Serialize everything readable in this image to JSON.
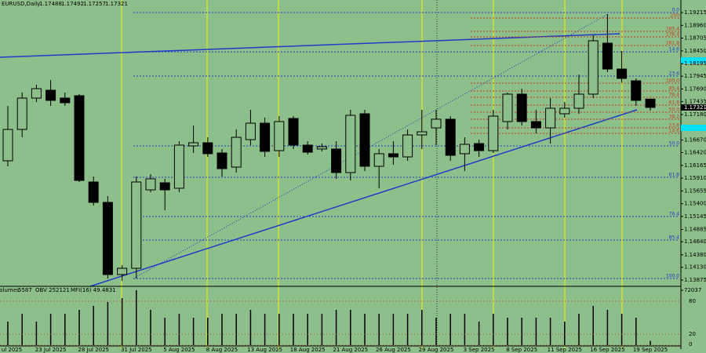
{
  "chart_data": {
    "type": "candlestick",
    "title": "EURUSD,Daily",
    "categories": [
      "ul 2025",
      null,
      null,
      "23 Jul 2025",
      null,
      null,
      "28 Jul 2025",
      null,
      null,
      "31 Jul 2025",
      null,
      null,
      "5 Aug 2025",
      null,
      null,
      "8 Aug 2025",
      null,
      null,
      "13 Aug 2025",
      null,
      null,
      "18 Aug 2025",
      null,
      null,
      "21 Aug 2025",
      null,
      null,
      "26 Aug 2025",
      null,
      null,
      "29 Aug 2025",
      null,
      null,
      "3 Sep 2025",
      null,
      null,
      "8 Sep 2025",
      null,
      null,
      "11 Sep 2025",
      null,
      null,
      "16 Sep 2025",
      null,
      null,
      "19 Sep 2025"
    ],
    "open": [
      1.16256,
      1.16882,
      1.17508,
      1.17665,
      1.17508,
      1.17555,
      1.15833,
      1.15426,
      1.13985,
      1.1411,
      1.15676,
      1.15817,
      1.15708,
      1.16553,
      1.16616,
      1.16412,
      1.1613,
      1.16679,
      1.17007,
      1.16459,
      1.17101,
      1.16569,
      1.16491,
      1.16491,
      1.16021,
      1.17195,
      1.16146,
      1.16397,
      1.16334,
      1.16772,
      1.16913,
      1.17086,
      1.16397,
      1.166,
      1.16459,
      1.17039,
      1.17587,
      1.17039,
      1.16913,
      1.17195,
      1.17305,
      1.17587,
      1.18605,
      1.18088,
      1.17853,
      1.17488
    ],
    "high": [
      1.17352,
      1.17618,
      1.17775,
      1.17869,
      1.17618,
      1.17587,
      1.15942,
      1.15551,
      1.14173,
      1.15942,
      1.15989,
      1.15896,
      1.16647,
      1.1696,
      1.16725,
      1.16491,
      1.16882,
      1.17274,
      1.17117,
      1.17148,
      1.17148,
      1.16647,
      1.166,
      1.16647,
      1.17274,
      1.17274,
      1.16491,
      1.16647,
      1.16882,
      1.17274,
      1.17274,
      1.17148,
      1.16725,
      1.16679,
      1.17274,
      1.17618,
      1.17696,
      1.17274,
      1.17508,
      1.1743,
      1.17978,
      1.18761,
      1.19184,
      1.18448,
      1.179,
      1.17492
    ],
    "low": [
      1.16146,
      1.16725,
      1.1743,
      1.17352,
      1.17352,
      1.15833,
      1.15363,
      1.13907,
      1.1386,
      1.13907,
      1.15629,
      1.15269,
      1.15629,
      1.16412,
      1.16334,
      1.15942,
      1.16021,
      1.16569,
      1.16334,
      1.16334,
      1.16491,
      1.16381,
      1.16444,
      1.15896,
      1.15864,
      1.16052,
      1.15708,
      1.16177,
      1.16256,
      1.16491,
      1.16569,
      1.16256,
      1.16052,
      1.16334,
      1.16412,
      1.16882,
      1.1696,
      1.16804,
      1.166,
      1.17117,
      1.17195,
      1.17508,
      1.18025,
      1.17822,
      1.17352,
      1.17257
    ],
    "close": [
      1.16882,
      1.17508,
      1.17696,
      1.17462,
      1.17415,
      1.15864,
      1.15426,
      1.13985,
      1.1411,
      1.15833,
      1.15896,
      1.15676,
      1.16569,
      1.16616,
      1.16397,
      1.16099,
      1.16725,
      1.17007,
      1.16444,
      1.17039,
      1.16569,
      1.16428,
      1.16538,
      1.16021,
      1.17164,
      1.16146,
      1.16397,
      1.16334,
      1.16772,
      1.16835,
      1.17086,
      1.16365,
      1.16585,
      1.16459,
      1.17148,
      1.17587,
      1.17039,
      1.16913,
      1.17305,
      1.17305,
      1.17587,
      1.18652,
      1.18088,
      1.179,
      1.17462,
      1.17321
    ],
    "up_color": "#8dbf8b",
    "down_color": "#000000",
    "ylim": [
      1.1375,
      1.19466
    ],
    "yticks": [
      {
        "value": 1.19215,
        "label": "1.19215"
      },
      {
        "value": 1.1896,
        "label": "1.18960"
      },
      {
        "value": 1.18705,
        "label": "1.18705"
      },
      {
        "value": 1.1845,
        "label": "1.18450"
      },
      {
        "value": 1.18195,
        "label": "1.18195"
      },
      {
        "value": 1.17945,
        "label": "1.17945"
      },
      {
        "value": 1.1769,
        "label": "1.17690"
      },
      {
        "value": 1.17435,
        "label": "1.17435"
      },
      {
        "value": 1.1718,
        "label": "1.17180"
      },
      {
        "value": 1.1667,
        "label": "1.16670"
      },
      {
        "value": 1.1642,
        "label": "1.16420"
      },
      {
        "value": 1.16165,
        "label": "1.16165"
      },
      {
        "value": 1.1591,
        "label": "1.15910"
      },
      {
        "value": 1.15655,
        "label": "1.15655"
      },
      {
        "value": 1.154,
        "label": "1.15400"
      },
      {
        "value": 1.15145,
        "label": "1.15145"
      },
      {
        "value": 1.14885,
        "label": "1.14885"
      },
      {
        "value": 1.1464,
        "label": "1.14640"
      },
      {
        "value": 1.1438,
        "label": "1.14380"
      },
      {
        "value": 1.1413,
        "label": "1.14130"
      },
      {
        "value": 1.13875,
        "label": "1.13875"
      }
    ],
    "fib_levels": [
      {
        "label": "0.0",
        "price": 1.19216,
        "color": "#1e3cc8"
      },
      {
        "label": "200",
        "price": 1.19106,
        "color": "#c83c1e"
      },
      {
        "label": "185.4",
        "price": 1.1884,
        "color": "#c83c1e"
      },
      {
        "label": "176.4",
        "price": 1.1873,
        "color": "#c83c1e"
      },
      {
        "label": "161.8",
        "price": 1.18558,
        "color": "#c83c1e"
      },
      {
        "label": "14.6",
        "price": 1.1843,
        "color": "#1e3cc8"
      },
      {
        "label": "23.6",
        "price": 1.17947,
        "color": "#1e3cc8"
      },
      {
        "label": "100.0",
        "price": 1.17806,
        "color": "#c83c1e"
      },
      {
        "label": "85.4",
        "price": 1.17649,
        "color": "#c83c1e"
      },
      {
        "label": "76.4",
        "price": 1.17524,
        "color": "#c83c1e"
      },
      {
        "label": "61.8",
        "price": 1.17368,
        "color": "#c83c1e"
      },
      {
        "label": "50.0",
        "price": 1.17227,
        "color": "#c83c1e"
      },
      {
        "label": "38.2",
        "price": 1.17086,
        "color": "#c83c1e"
      },
      {
        "label": "23.6",
        "price": 1.16913,
        "color": "#c83c1e"
      },
      {
        "label": "14.6",
        "price": 1.16804,
        "color": "#c83c1e"
      },
      {
        "label": "50.0",
        "price": 1.16553,
        "color": "#1e3cc8"
      },
      {
        "label": "61.8",
        "price": 1.15927,
        "color": "#1e3cc8"
      },
      {
        "label": "76.4",
        "price": 1.15144,
        "color": "#1e3cc8"
      },
      {
        "label": "85.4",
        "price": 1.14674,
        "color": "#1e3cc8"
      },
      {
        "label": "100.0",
        "price": 1.13907,
        "color": "#1e3cc8"
      }
    ],
    "volume": {
      "label": "Volumes",
      "obv": "OBV 252121",
      "mfi": "MFI(16) 49.4831",
      "values": [
        30900,
        41200,
        30900,
        41200,
        41200,
        46300,
        51500,
        56600,
        61700,
        72000,
        46300,
        36000,
        41200,
        36000,
        36000,
        41200,
        41200,
        46300,
        41200,
        41200,
        41200,
        41200,
        41200,
        46300,
        46300,
        41200,
        41200,
        41200,
        41200,
        46300,
        36000,
        41200,
        41200,
        30900,
        41200,
        36000,
        36000,
        36000,
        36000,
        30900,
        41200,
        51500,
        46300,
        41200,
        36000,
        5587
      ],
      "ylim": [
        0,
        72037
      ],
      "yticks": [
        72037
      ],
      "mfi_ylim": [
        0,
        100
      ],
      "mfi_ticks": [
        80,
        20,
        0
      ]
    }
  }
}
